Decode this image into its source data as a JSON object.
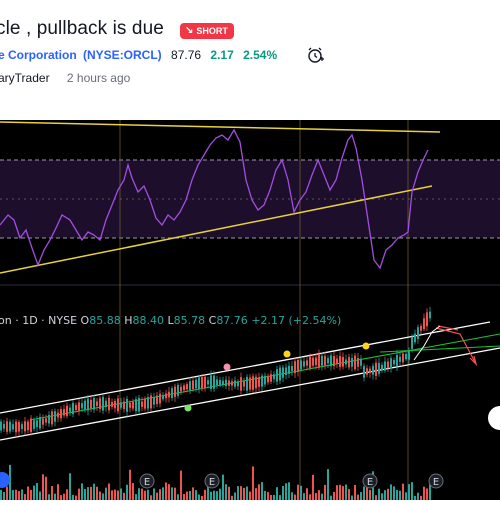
{
  "idea": {
    "title": "cle , pullback is due",
    "badge": "SHORT",
    "company": "e Corporation",
    "ticker": "(NYSE:ORCL)",
    "price": "87.76",
    "change": "2.17",
    "change_pct": "2.54%",
    "author": "aryTrader",
    "time": "2 hours ago"
  },
  "chart_legend": {
    "symbol": "on · 1D · NYSE",
    "open_label": "O",
    "open": "85.88",
    "high_label": "H",
    "high": "88.40",
    "low_label": "L",
    "low": "85.78",
    "close_label": "C",
    "close": "87.76",
    "change": "+2.17 (+2.54%)"
  },
  "colors": {
    "up": "#26a69a",
    "down": "#ef5350",
    "short": "#f23645",
    "link": "#2962ff",
    "rsi": "#a24ee0",
    "trendline": "#e6d23a"
  },
  "icons": {
    "badge_icon": "arrow-down-right-icon",
    "alarm_icon": "alarm-clock-plus-icon"
  }
}
